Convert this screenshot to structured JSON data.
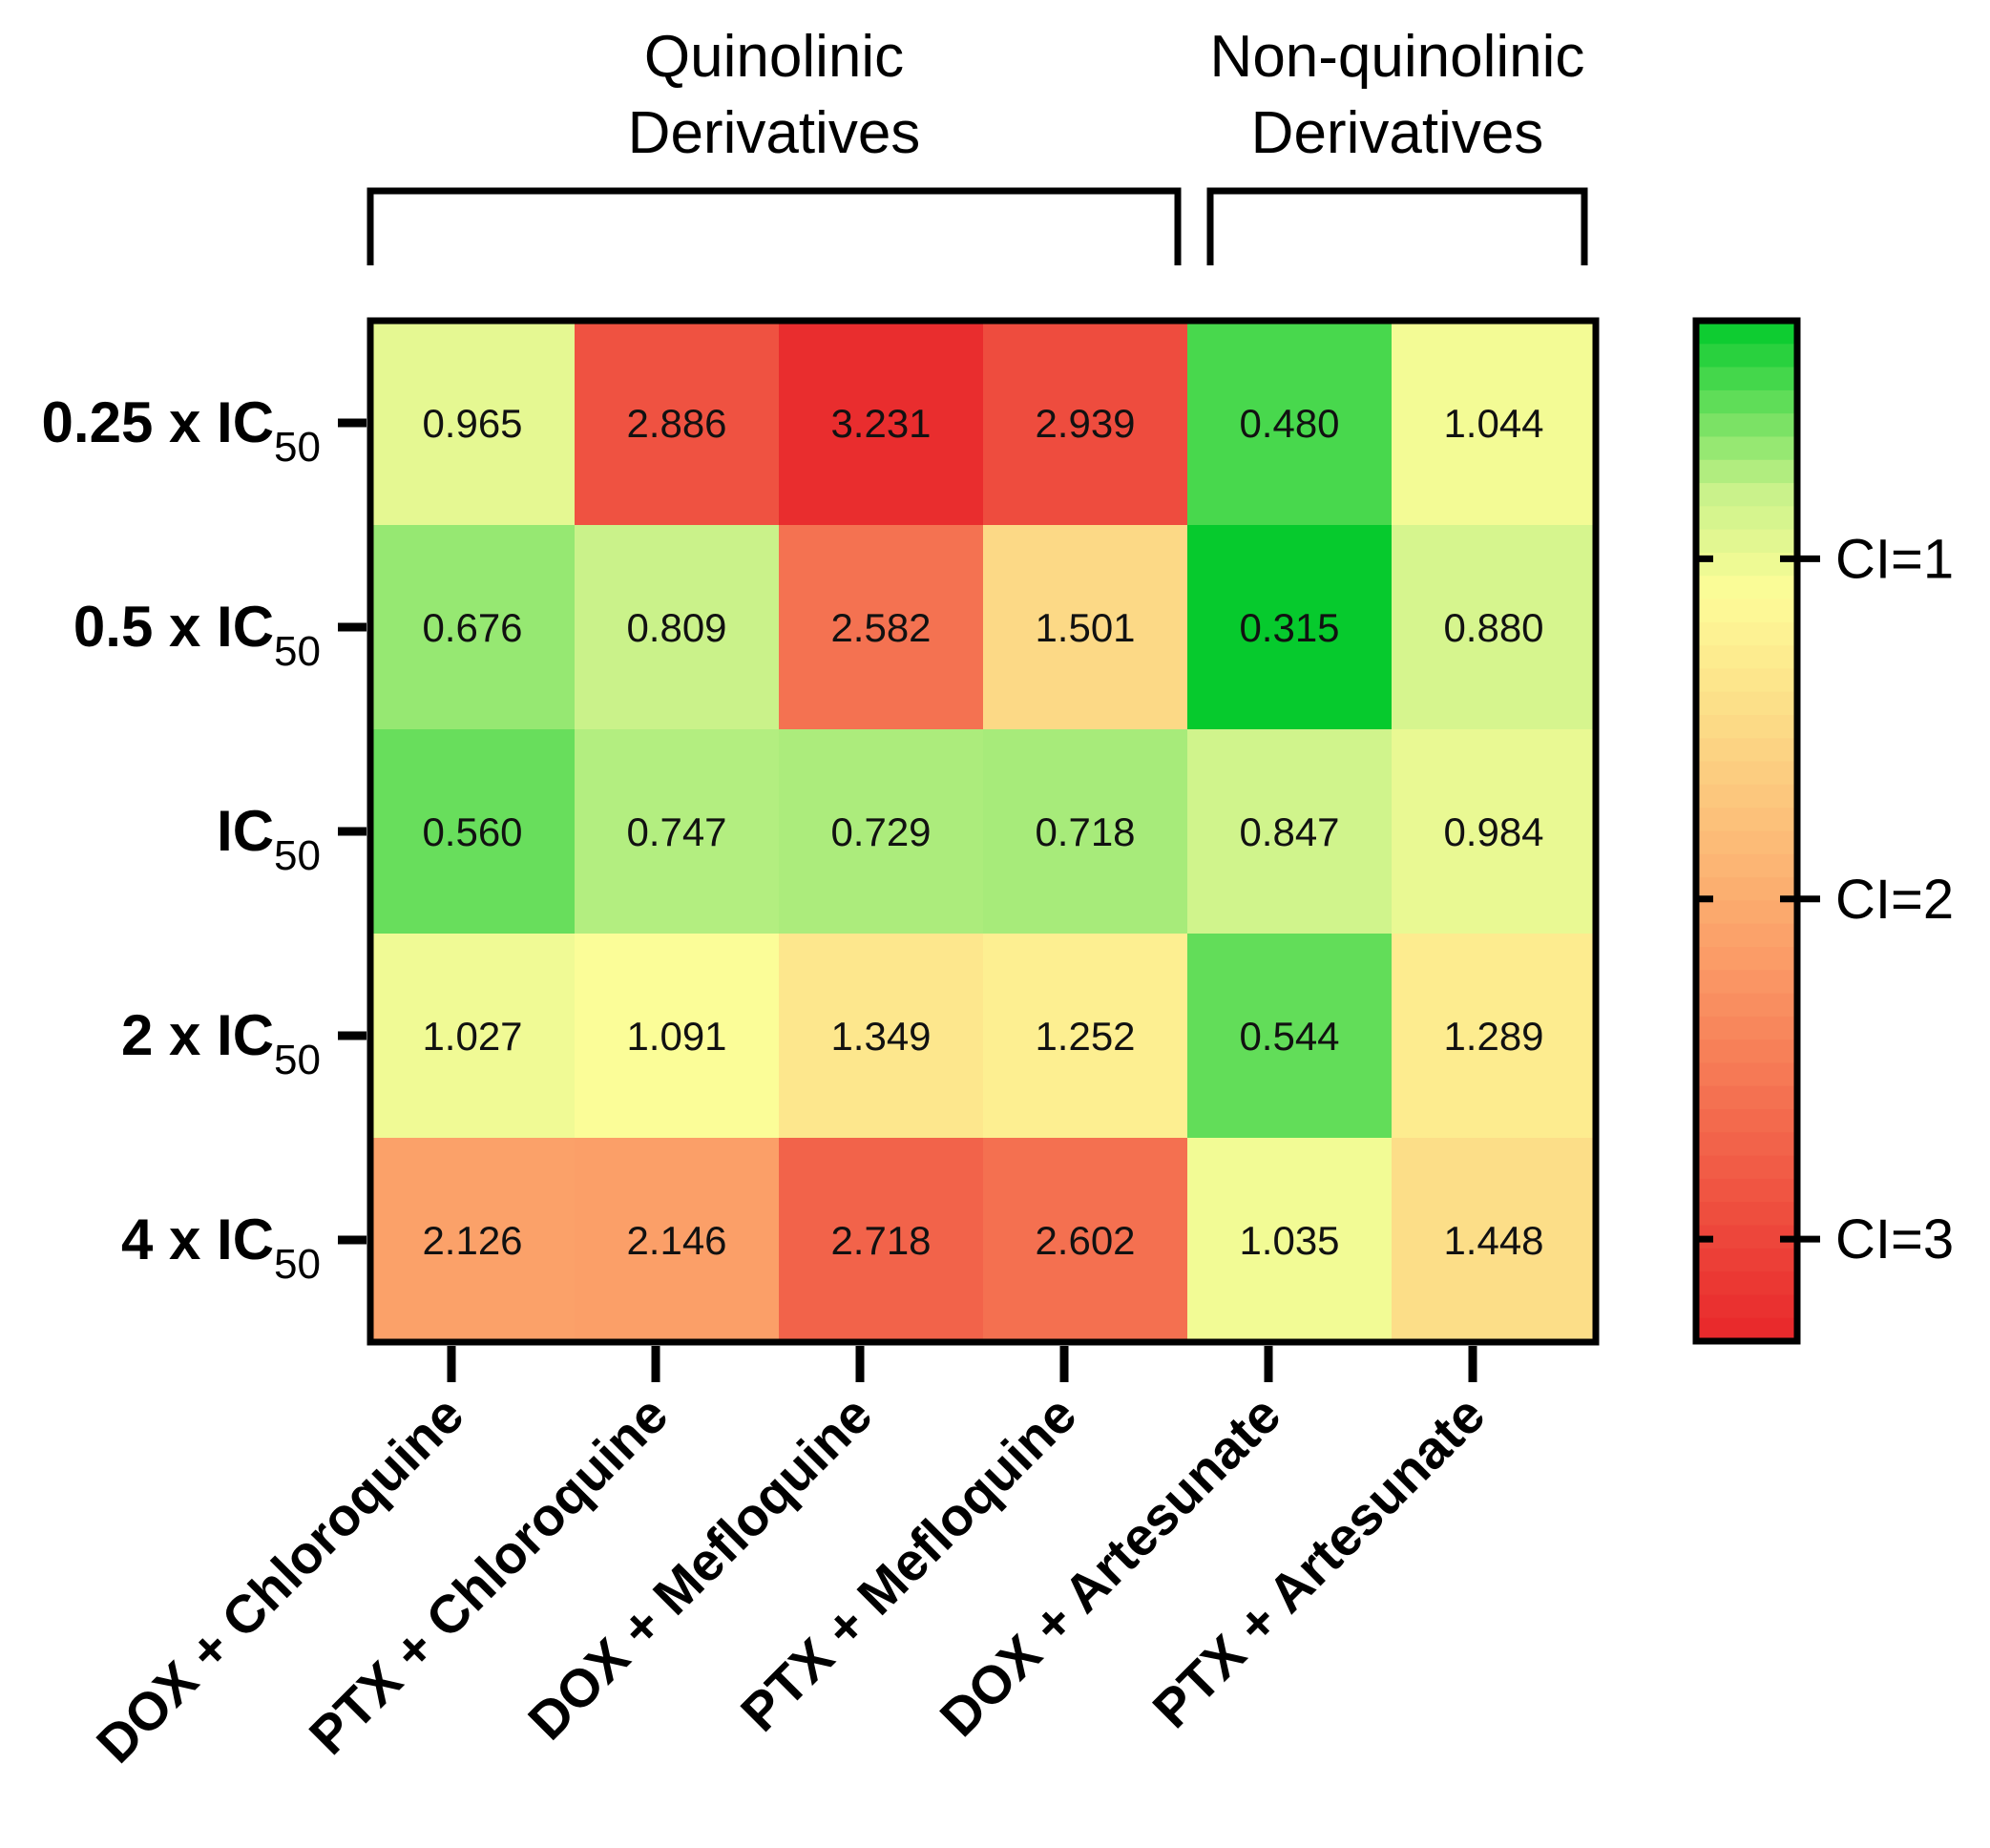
{
  "chart_data": {
    "type": "heatmap",
    "title": "",
    "groups": [
      {
        "name_line1": "Quinolinic",
        "name_line2": "Derivatives",
        "columns": [
          0,
          1,
          2,
          3
        ]
      },
      {
        "name_line1": "Non-quinolinic",
        "name_line2": "Derivatives",
        "columns": [
          4,
          5
        ]
      }
    ],
    "columns": [
      "DOX + Chloroquine",
      "PTX + Chloroquine",
      "DOX + Mefloquine",
      "PTX + Mefloquine",
      "DOX + Artesunate",
      "PTX + Artesunate"
    ],
    "rows": [
      {
        "main": "0.25 x IC",
        "sub": "50"
      },
      {
        "main": "0.5 x IC",
        "sub": "50"
      },
      {
        "main": "IC",
        "sub": "50"
      },
      {
        "main": "2 x IC",
        "sub": "50"
      },
      {
        "main": "4 x IC",
        "sub": "50"
      }
    ],
    "values": [
      [
        "0.965",
        "2.886",
        "3.231",
        "2.939",
        "0.480",
        "1.044"
      ],
      [
        "0.676",
        "0.809",
        "2.582",
        "1.501",
        "0.315",
        "0.880"
      ],
      [
        "0.560",
        "0.747",
        "0.729",
        "0.718",
        "0.847",
        "0.984"
      ],
      [
        "1.027",
        "1.091",
        "1.349",
        "1.252",
        "0.544",
        "1.289"
      ],
      [
        "2.126",
        "2.146",
        "2.718",
        "2.602",
        "1.035",
        "1.448"
      ]
    ],
    "colorbar": {
      "range": [
        0.3,
        3.3
      ],
      "ticks": [
        {
          "value": 1,
          "label": "CI=1"
        },
        {
          "value": 2,
          "label": "CI=2"
        },
        {
          "value": 3,
          "label": "CI=3"
        }
      ],
      "colors": {
        "green": "#00c92a",
        "light_green": "#c8f28a",
        "yellow": "#fdfd98",
        "orange": "#fb9a66",
        "red": "#e8262a"
      }
    }
  }
}
